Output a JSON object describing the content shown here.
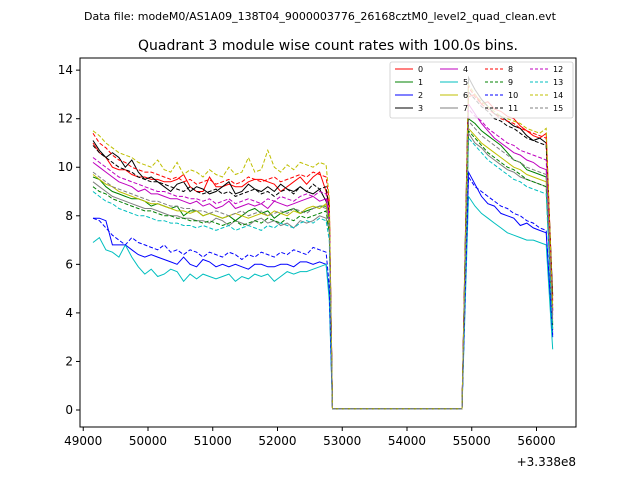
{
  "suptitle": "Data file: modeM0/AS1A09_138T04_9000003776_26168cztM0_level2_quad_clean.evt",
  "chart_data": {
    "type": "line",
    "title": "Quadrant 3 module wise count rates with 100.0s bins.",
    "xlabel": "",
    "ylabel": "",
    "x_offset_label": "+3.338e8",
    "xlim": [
      48950,
      56610
    ],
    "ylim": [
      -0.7,
      14.5
    ],
    "xticks": [
      49000,
      50000,
      51000,
      52000,
      53000,
      54000,
      55000,
      56000
    ],
    "yticks": [
      0,
      2,
      4,
      6,
      8,
      10,
      12,
      14
    ],
    "legend_position": "top-right",
    "segments": [
      {
        "x_start": 49150,
        "x_end": 52750
      },
      {
        "x_start": 52850,
        "x_end": 54850
      },
      {
        "x_start": 54950,
        "x_end": 56250
      }
    ],
    "series": [
      {
        "name": "0",
        "color": "#ff0000",
        "dash": false,
        "active": [
          11.0,
          10.6,
          10.4,
          10.0,
          9.9,
          9.9,
          9.7,
          9.6,
          9.6,
          9.5,
          9.5,
          9.4,
          9.4,
          9.5,
          9.7,
          9.2,
          9.0,
          9.0,
          9.6,
          9.2,
          9.2,
          9.3,
          9.2,
          9.2,
          9.4,
          9.5,
          9.5,
          9.4,
          9.3,
          9.0,
          9.2,
          9.4,
          9.6,
          9.3,
          9.6,
          9.8,
          9.0
        ],
        "gap": [
          8.4,
          0.05
        ],
        "post": [
          12.9,
          13.0,
          12.6,
          12.7,
          12.4,
          12.3,
          12.1,
          12.0,
          11.7,
          11.5,
          11.3,
          11.2,
          11.4,
          4.5
        ]
      },
      {
        "name": "1",
        "color": "#008000",
        "dash": false,
        "active": [
          9.6,
          9.5,
          9.2,
          9.0,
          8.9,
          8.8,
          8.7,
          8.7,
          8.6,
          8.4,
          8.5,
          8.4,
          8.3,
          8.4,
          8.0,
          8.2,
          8.2,
          8.0,
          8.1,
          8.0,
          7.9,
          8.0,
          7.8,
          8.0,
          8.2,
          8.3,
          8.1,
          8.2,
          7.9,
          8.1,
          8.2,
          8.3,
          8.1,
          8.2,
          8.3,
          8.4,
          8.4
        ],
        "gap": [
          7.8,
          0.05
        ],
        "post": [
          12.0,
          11.8,
          11.5,
          11.3,
          11.1,
          10.9,
          10.6,
          10.3,
          10.2,
          9.9,
          9.8,
          9.7,
          9.6,
          3.3
        ]
      },
      {
        "name": "2",
        "color": "#0000ff",
        "dash": false,
        "active": [
          7.9,
          7.9,
          7.8,
          6.8,
          6.8,
          6.8,
          6.6,
          6.4,
          6.3,
          6.4,
          6.3,
          6.2,
          6.1,
          6.0,
          6.3,
          6.0,
          5.9,
          6.2,
          6.1,
          5.9,
          6.0,
          5.9,
          6.0,
          5.9,
          5.8,
          6.0,
          6.0,
          5.9,
          5.9,
          6.0,
          6.0,
          5.9,
          6.1,
          6.1,
          6.0,
          6.1,
          6.0
        ],
        "gap": [
          4.8,
          0.05
        ],
        "post": [
          9.8,
          9.3,
          8.8,
          8.5,
          8.4,
          8.1,
          8.0,
          7.9,
          7.6,
          7.7,
          7.5,
          7.4,
          7.3,
          3.0
        ]
      },
      {
        "name": "3",
        "color": "#000000",
        "dash": false,
        "active": [
          11.1,
          10.7,
          10.4,
          10.6,
          10.4,
          10.0,
          10.3,
          9.8,
          9.5,
          9.6,
          9.4,
          9.2,
          9.0,
          9.3,
          9.4,
          9.0,
          9.2,
          9.1,
          8.9,
          9.0,
          9.2,
          9.4,
          8.9,
          9.0,
          9.3,
          9.1,
          9.0,
          9.2,
          9.0,
          9.3,
          9.1,
          9.0,
          9.2,
          9.0,
          8.9,
          9.1,
          8.6
        ],
        "gap": [
          8.1,
          0.05
        ],
        "post": [
          13.7,
          13.2,
          12.8,
          12.5,
          12.2,
          12.1,
          11.9,
          11.7,
          11.6,
          11.3,
          11.1,
          11.2,
          11.0,
          4.7
        ]
      },
      {
        "name": "4",
        "color": "#bf00bf",
        "dash": false,
        "active": [
          10.2,
          10.0,
          9.8,
          9.6,
          9.4,
          9.3,
          9.2,
          9.0,
          9.1,
          8.9,
          8.9,
          8.8,
          8.7,
          8.7,
          8.6,
          8.5,
          8.6,
          8.4,
          8.5,
          8.3,
          8.4,
          8.6,
          8.3,
          8.4,
          8.5,
          8.4,
          8.5,
          8.3,
          8.6,
          8.5,
          8.4,
          8.5,
          8.6,
          8.7,
          8.8,
          8.6,
          8.7
        ],
        "gap": [
          7.9,
          0.05
        ],
        "post": [
          12.6,
          12.2,
          11.8,
          11.5,
          11.2,
          11.0,
          10.8,
          10.6,
          10.5,
          10.3,
          10.2,
          10.0,
          9.9,
          3.9
        ]
      },
      {
        "name": "5",
        "color": "#00bfbf",
        "dash": false,
        "active": [
          6.9,
          7.1,
          6.6,
          6.5,
          6.3,
          6.8,
          6.3,
          5.9,
          5.6,
          5.8,
          5.5,
          5.6,
          5.8,
          5.7,
          5.3,
          5.6,
          5.4,
          5.6,
          5.5,
          5.4,
          5.5,
          5.6,
          5.3,
          5.5,
          5.4,
          5.6,
          5.5,
          5.6,
          5.3,
          5.5,
          5.7,
          5.6,
          5.7,
          5.7,
          5.8,
          5.9,
          6.0
        ],
        "gap": [
          4.5,
          0.05
        ],
        "post": [
          8.8,
          8.4,
          8.1,
          7.9,
          7.7,
          7.5,
          7.3,
          7.2,
          7.1,
          7.0,
          7.0,
          6.9,
          6.8,
          2.5
        ]
      },
      {
        "name": "6",
        "color": "#bfbf00",
        "dash": false,
        "active": [
          9.7,
          9.5,
          9.3,
          9.2,
          9.0,
          8.9,
          8.8,
          8.7,
          8.6,
          8.5,
          8.5,
          8.4,
          8.3,
          8.2,
          8.2,
          8.1,
          8.2,
          8.0,
          8.1,
          8.0,
          7.9,
          8.0,
          8.1,
          8.0,
          7.9,
          8.0,
          8.1,
          8.0,
          8.2,
          8.1,
          8.0,
          8.2,
          8.1,
          8.3,
          8.4,
          8.3,
          8.5
        ],
        "gap": [
          7.6,
          0.05
        ],
        "post": [
          11.6,
          11.3,
          11.0,
          10.8,
          10.6,
          10.4,
          10.2,
          10.0,
          9.9,
          9.7,
          9.6,
          9.5,
          9.4,
          3.6
        ]
      },
      {
        "name": "7",
        "color": "#808080",
        "dash": false,
        "active": [
          9.4,
          9.2,
          9.0,
          8.8,
          8.7,
          8.6,
          8.5,
          8.4,
          8.3,
          8.3,
          8.2,
          8.1,
          8.0,
          8.0,
          7.9,
          7.9,
          7.8,
          7.8,
          7.7,
          7.9,
          7.8,
          7.6,
          7.8,
          7.7,
          7.6,
          7.8,
          7.9,
          7.7,
          7.8,
          7.6,
          7.7,
          7.5,
          7.8,
          7.7,
          7.8,
          8.0,
          7.9
        ],
        "gap": [
          7.4,
          0.05
        ],
        "post": [
          11.4,
          11.0,
          10.8,
          10.5,
          10.3,
          10.1,
          9.9,
          9.8,
          9.6,
          9.5,
          9.4,
          9.3,
          9.2,
          3.5
        ]
      },
      {
        "name": "8",
        "color": "#ff0000",
        "dash": true,
        "active": [
          11.4,
          11.0,
          10.8,
          10.5,
          10.3,
          10.2,
          10.0,
          9.9,
          9.8,
          9.8,
          9.7,
          9.6,
          9.5,
          9.6,
          9.4,
          9.5,
          9.3,
          9.4,
          9.5,
          9.3,
          9.4,
          9.5,
          9.3,
          9.4,
          9.6,
          9.5,
          9.4,
          9.5,
          9.6,
          9.4,
          9.5,
          9.6,
          9.7,
          9.6,
          9.8,
          9.7,
          9.6
        ],
        "gap": [
          8.6,
          0.05
        ],
        "post": [
          13.3,
          12.9,
          12.6,
          12.4,
          12.2,
          12.0,
          11.9,
          11.8,
          11.6,
          11.5,
          11.4,
          11.3,
          11.2,
          4.3
        ]
      },
      {
        "name": "9",
        "color": "#008000",
        "dash": true,
        "active": [
          9.2,
          9.0,
          8.9,
          8.7,
          8.6,
          8.5,
          8.4,
          8.3,
          8.2,
          8.2,
          8.1,
          8.0,
          8.0,
          7.9,
          7.9,
          7.8,
          7.8,
          7.7,
          7.8,
          7.7,
          7.6,
          7.7,
          7.8,
          7.6,
          7.7,
          7.8,
          7.7,
          7.9,
          7.8,
          7.7,
          7.9,
          7.8,
          8.0,
          7.9,
          8.0,
          8.1,
          8.2
        ],
        "gap": [
          7.3,
          0.05
        ],
        "post": [
          11.5,
          11.2,
          10.9,
          10.6,
          10.4,
          10.2,
          10.0,
          9.9,
          9.7,
          9.5,
          9.4,
          9.3,
          9.2,
          3.4
        ]
      },
      {
        "name": "10",
        "color": "#0000ff",
        "dash": true,
        "active": [
          7.9,
          7.8,
          7.5,
          7.2,
          7.0,
          6.8,
          7.1,
          6.9,
          6.8,
          6.7,
          6.6,
          6.8,
          6.5,
          6.6,
          6.4,
          6.6,
          6.5,
          6.3,
          6.5,
          6.4,
          6.3,
          6.5,
          6.4,
          6.2,
          6.4,
          6.3,
          6.5,
          6.4,
          6.3,
          6.5,
          6.4,
          6.6,
          6.5,
          6.4,
          6.7,
          6.6,
          6.5
        ],
        "gap": [
          5.1,
          0.05
        ],
        "post": [
          9.6,
          9.2,
          9.0,
          8.8,
          8.6,
          8.4,
          8.3,
          8.1,
          8.0,
          7.8,
          7.7,
          7.5,
          7.4,
          3.1
        ]
      },
      {
        "name": "11",
        "color": "#000000",
        "dash": true,
        "active": [
          10.9,
          10.6,
          10.4,
          10.2,
          10.0,
          9.9,
          9.8,
          9.6,
          9.5,
          9.4,
          9.4,
          9.3,
          9.2,
          9.1,
          9.0,
          9.2,
          9.0,
          8.9,
          9.0,
          9.1,
          8.9,
          9.0,
          8.8,
          8.9,
          9.0,
          9.1,
          8.9,
          9.0,
          8.8,
          9.0,
          9.1,
          8.9,
          9.2,
          9.0,
          9.3,
          9.1,
          9.2
        ],
        "gap": [
          8.2,
          0.05
        ],
        "post": [
          13.1,
          12.8,
          12.5,
          12.3,
          12.0,
          11.9,
          11.7,
          11.6,
          11.4,
          11.2,
          11.1,
          11.0,
          10.9,
          4.1
        ]
      },
      {
        "name": "12",
        "color": "#bf00bf",
        "dash": true,
        "active": [
          10.4,
          10.2,
          10.0,
          9.8,
          9.6,
          9.5,
          9.4,
          9.3,
          9.2,
          9.1,
          9.0,
          9.0,
          8.9,
          8.8,
          8.8,
          8.7,
          8.7,
          8.6,
          8.7,
          8.5,
          8.6,
          8.7,
          8.5,
          8.6,
          8.7,
          8.6,
          8.5,
          8.7,
          8.6,
          8.8,
          8.7,
          8.6,
          8.8,
          8.9,
          8.8,
          9.0,
          8.9
        ],
        "gap": [
          8.0,
          0.05
        ],
        "post": [
          12.4,
          12.1,
          11.9,
          11.6,
          11.4,
          11.2,
          11.0,
          10.9,
          10.7,
          10.6,
          10.5,
          10.4,
          10.3,
          4.0
        ]
      },
      {
        "name": "13",
        "color": "#00bfbf",
        "dash": true,
        "active": [
          9.0,
          8.8,
          8.6,
          8.5,
          8.3,
          8.2,
          8.1,
          8.0,
          8.0,
          7.9,
          7.8,
          7.8,
          7.7,
          7.7,
          7.6,
          7.6,
          7.5,
          7.6,
          7.5,
          7.4,
          7.5,
          7.6,
          7.4,
          7.5,
          7.6,
          7.5,
          7.4,
          7.6,
          7.5,
          7.7,
          7.6,
          7.5,
          7.7,
          7.8,
          7.7,
          7.9,
          7.8
        ],
        "gap": [
          7.0,
          0.05
        ],
        "post": [
          11.2,
          10.9,
          10.6,
          10.3,
          10.1,
          9.9,
          9.7,
          9.5,
          9.4,
          9.2,
          9.1,
          9.0,
          8.9,
          3.2
        ]
      },
      {
        "name": "14",
        "color": "#bfbf00",
        "dash": true,
        "active": [
          11.5,
          11.3,
          11.0,
          10.8,
          10.6,
          10.5,
          10.4,
          10.2,
          10.1,
          10.0,
          10.3,
          9.9,
          9.8,
          10.2,
          9.7,
          9.9,
          9.8,
          9.6,
          9.9,
          9.7,
          9.6,
          10.0,
          9.7,
          9.8,
          10.4,
          9.8,
          9.9,
          10.7,
          10.0,
          9.8,
          10.1,
          9.9,
          10.2,
          10.1,
          10.0,
          10.2,
          10.1
        ],
        "gap": [
          8.7,
          0.05
        ],
        "post": [
          13.4,
          13.0,
          12.7,
          12.5,
          12.3,
          12.1,
          12.0,
          11.9,
          11.8,
          11.6,
          11.5,
          11.4,
          11.6,
          4.2
        ]
      },
      {
        "name": "15",
        "color": "#808080",
        "dash": true,
        "active": [
          9.8,
          9.6,
          9.4,
          9.2,
          9.1,
          9.0,
          8.9,
          8.8,
          8.7,
          8.6,
          8.6,
          8.5,
          8.4,
          8.4,
          8.3,
          8.3,
          8.2,
          8.2,
          8.1,
          8.2,
          8.1,
          8.0,
          8.1,
          8.2,
          8.0,
          8.1,
          8.2,
          8.0,
          8.1,
          8.2,
          8.1,
          8.3,
          8.2,
          8.1,
          8.3,
          8.4,
          8.3
        ],
        "gap": [
          7.7,
          0.05
        ],
        "post": [
          11.9,
          11.6,
          11.3,
          11.1,
          10.9,
          10.7,
          10.5,
          10.3,
          10.2,
          10.0,
          9.9,
          9.8,
          9.7,
          3.7
        ]
      }
    ]
  }
}
